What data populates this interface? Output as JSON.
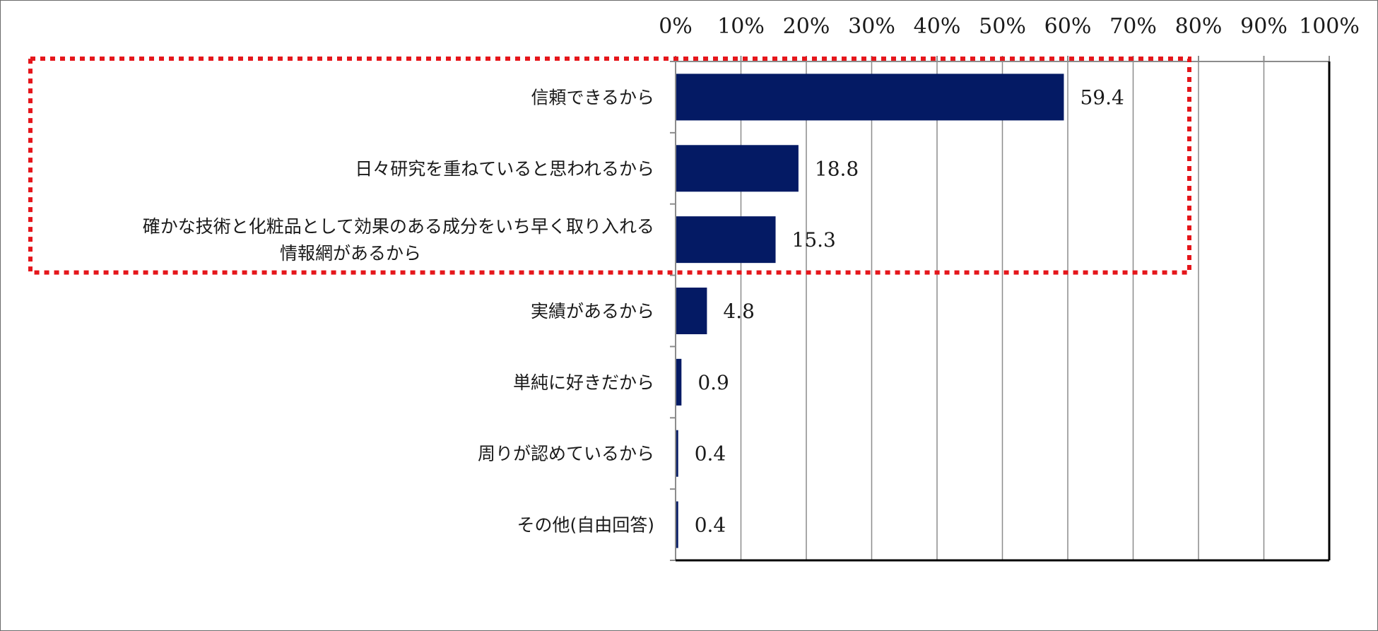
{
  "chart_data": {
    "type": "bar",
    "orientation": "horizontal",
    "categories": [
      [
        "信頼できるから"
      ],
      [
        "日々研究を重ねていると思われるから"
      ],
      [
        "確かな技術と化粧品として効果のある成分をいち早く取り入れる",
        "情報網があるから"
      ],
      [
        "実績があるから"
      ],
      [
        "単純に好きだから"
      ],
      [
        "周りが認めているから"
      ],
      [
        "その他(自由回答)"
      ]
    ],
    "values": [
      59.4,
      18.8,
      15.3,
      4.8,
      0.9,
      0.4,
      0.4
    ],
    "value_labels": [
      "59.4",
      "18.8",
      "15.3",
      "4.8",
      "0.9",
      "0.4",
      "0.4"
    ],
    "xlim": [
      0,
      100
    ],
    "x_ticks": [
      "0%",
      "10%",
      "20%",
      "30%",
      "40%",
      "50%",
      "60%",
      "70%",
      "80%",
      "90%",
      "100%"
    ],
    "x_axis_position": "top",
    "grid": true,
    "legend": "none",
    "highlight": {
      "style": "dotted",
      "covers_categories": [
        0,
        1,
        2
      ]
    },
    "colors": {
      "bar": "#041a64",
      "grid": "#8c8c8c",
      "axis": "#000000",
      "highlight": "#e5161b",
      "frame": "#6b6b6b"
    }
  }
}
